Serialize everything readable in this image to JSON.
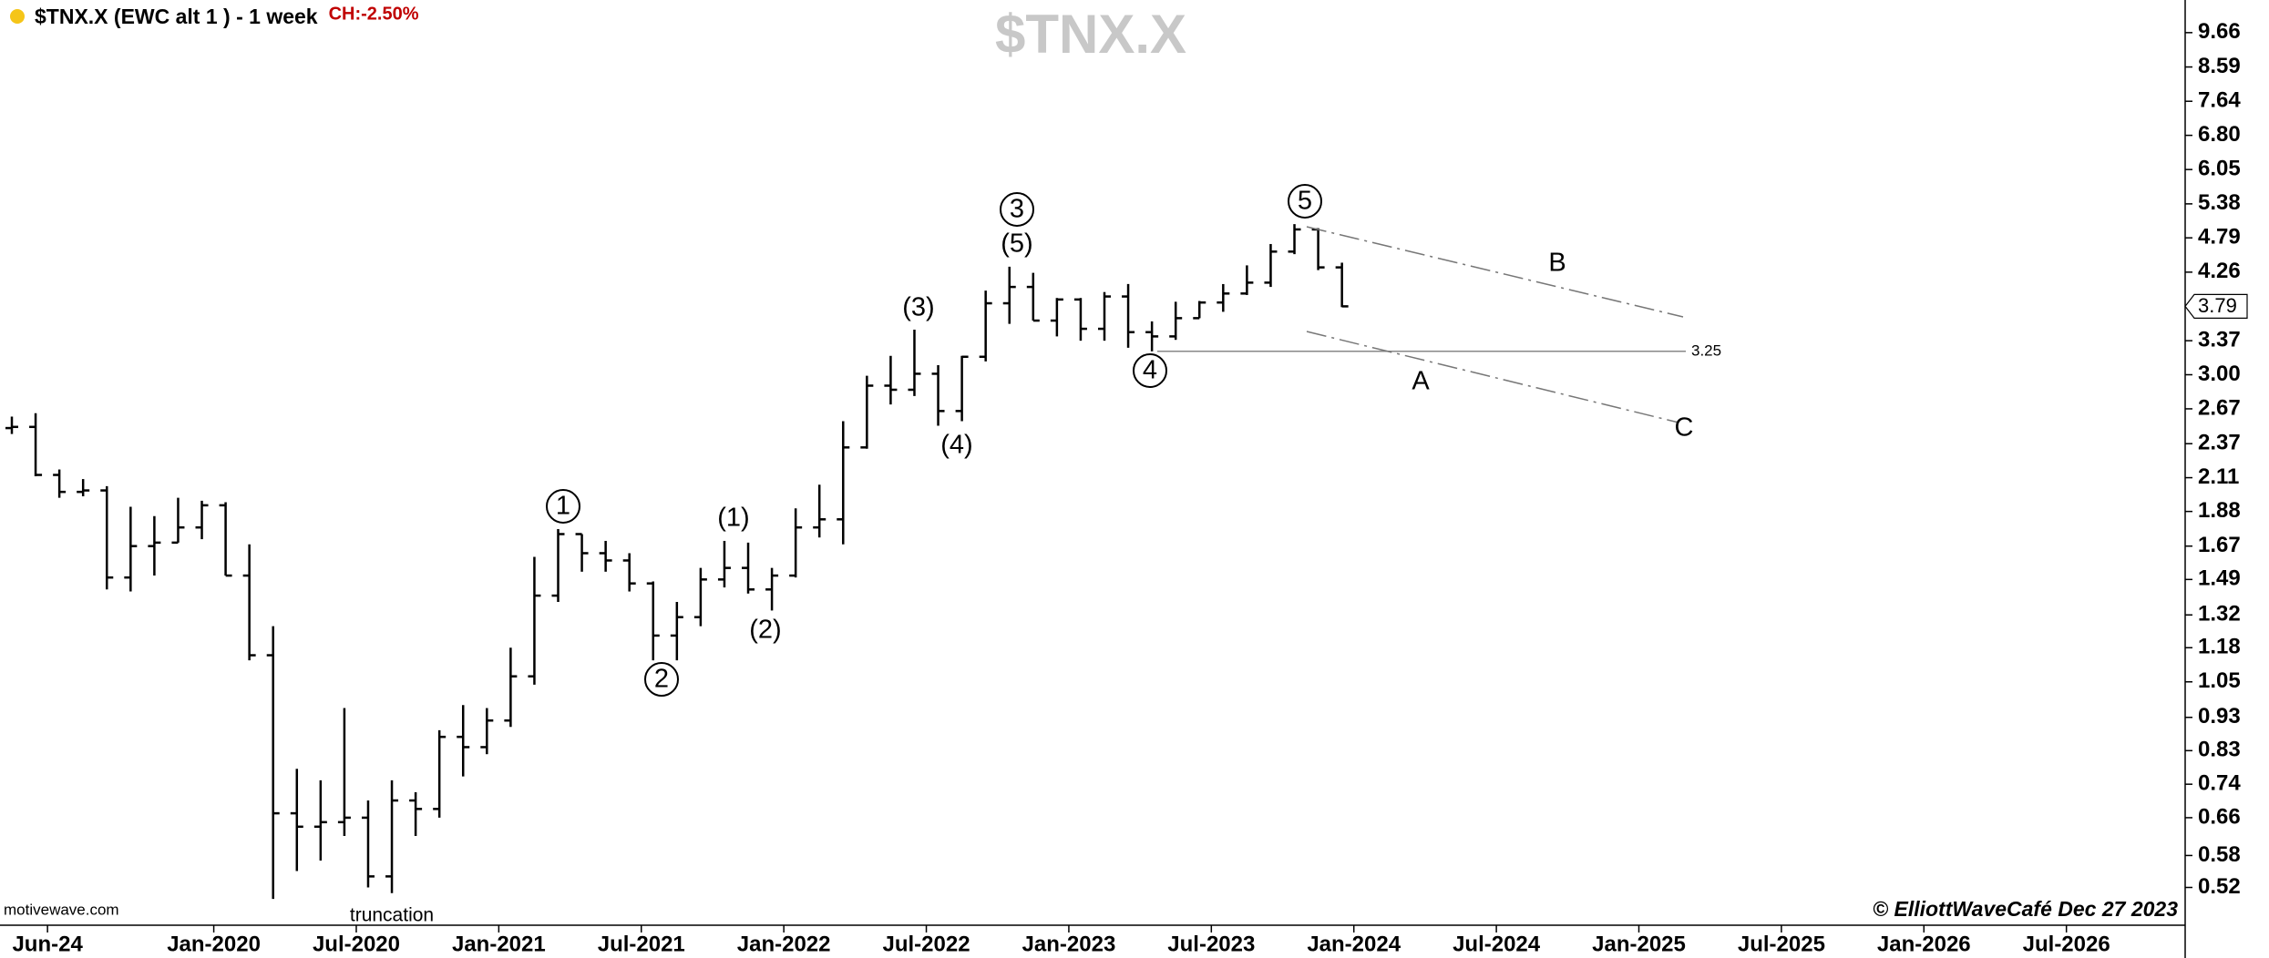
{
  "chart_data": {
    "type": "ohlc",
    "title": "$TNX.X",
    "header": "$TNX.X (EWC alt 1 ) - 1 week",
    "change": "CH:-2.50%",
    "source": "motivewave.com",
    "copyright": "© ElliottWaveCafé Dec 27 2023",
    "log_scale": true,
    "grid": false,
    "color": "#000000",
    "x": [
      "2019-04",
      "2019-05",
      "2019-06",
      "2019-07",
      "2019-08",
      "2019-09",
      "2019-10",
      "2019-11",
      "2019-12",
      "2020-01",
      "2020-02",
      "2020-03",
      "2020-04",
      "2020-05",
      "2020-06",
      "2020-07",
      "2020-08",
      "2020-09",
      "2020-10",
      "2020-11",
      "2020-12",
      "2021-01",
      "2021-02",
      "2021-03",
      "2021-04",
      "2021-05",
      "2021-06",
      "2021-07",
      "2021-08",
      "2021-09",
      "2021-10",
      "2021-11",
      "2021-12",
      "2022-01",
      "2022-02",
      "2022-03",
      "2022-04",
      "2022-05",
      "2022-06",
      "2022-07",
      "2022-08",
      "2022-09",
      "2022-10",
      "2022-11",
      "2022-12",
      "2023-01",
      "2023-02",
      "2023-03",
      "2023-04",
      "2023-05",
      "2023-06",
      "2023-07",
      "2023-08",
      "2023-09",
      "2023-10",
      "2023-11",
      "2023-12"
    ],
    "open": [
      2.5,
      2.51,
      2.13,
      2.01,
      2.02,
      1.5,
      1.67,
      1.69,
      1.78,
      1.92,
      1.51,
      1.15,
      0.67,
      0.64,
      0.65,
      0.66,
      0.54,
      0.7,
      0.68,
      0.87,
      0.84,
      0.92,
      1.07,
      1.41,
      1.74,
      1.63,
      1.59,
      1.47,
      1.23,
      1.31,
      1.49,
      1.55,
      1.44,
      1.51,
      1.78,
      1.83,
      2.34,
      2.89,
      2.85,
      3.01,
      2.65,
      3.19,
      3.83,
      4.05,
      3.61,
      3.88,
      3.51,
      3.92,
      3.47,
      3.42,
      3.64,
      3.84,
      3.96,
      4.11,
      4.57,
      4.93,
      4.33
    ],
    "high": [
      2.6,
      2.63,
      2.17,
      2.1,
      2.05,
      1.91,
      1.85,
      1.97,
      1.95,
      1.94,
      1.68,
      1.27,
      0.78,
      0.75,
      0.96,
      0.7,
      0.75,
      0.72,
      0.89,
      0.97,
      0.96,
      1.18,
      1.61,
      1.77,
      1.74,
      1.7,
      1.63,
      1.48,
      1.38,
      1.55,
      1.7,
      1.69,
      1.55,
      1.9,
      2.06,
      2.56,
      2.99,
      3.2,
      3.5,
      3.1,
      3.2,
      4.0,
      4.34,
      4.25,
      3.9,
      3.9,
      3.98,
      4.09,
      3.6,
      3.85,
      3.86,
      4.09,
      4.36,
      4.69,
      5.02,
      4.95,
      4.4
    ],
    "low": [
      2.45,
      2.12,
      1.97,
      1.98,
      1.44,
      1.43,
      1.51,
      1.69,
      1.71,
      1.51,
      1.13,
      0.5,
      0.55,
      0.57,
      0.62,
      0.52,
      0.51,
      0.62,
      0.66,
      0.76,
      0.82,
      0.9,
      1.04,
      1.38,
      1.53,
      1.53,
      1.43,
      1.13,
      1.13,
      1.27,
      1.45,
      1.42,
      1.34,
      1.5,
      1.72,
      1.68,
      2.33,
      2.71,
      2.79,
      2.52,
      2.56,
      3.14,
      3.57,
      3.61,
      3.42,
      3.37,
      3.37,
      3.29,
      3.25,
      3.38,
      3.64,
      3.72,
      3.94,
      4.05,
      4.53,
      4.29,
      3.78
    ],
    "close": [
      2.51,
      2.13,
      2.01,
      2.02,
      1.5,
      1.67,
      1.69,
      1.78,
      1.92,
      1.51,
      1.15,
      0.67,
      0.64,
      0.65,
      0.66,
      0.54,
      0.7,
      0.68,
      0.87,
      0.84,
      0.92,
      1.07,
      1.41,
      1.74,
      1.63,
      1.59,
      1.47,
      1.23,
      1.31,
      1.49,
      1.55,
      1.44,
      1.51,
      1.78,
      1.83,
      2.34,
      2.89,
      2.85,
      3.01,
      2.65,
      3.19,
      3.83,
      4.05,
      3.61,
      3.88,
      3.51,
      3.92,
      3.47,
      3.42,
      3.64,
      3.84,
      3.96,
      4.11,
      4.57,
      4.93,
      4.33,
      3.79
    ],
    "xlim": [
      "2019-04",
      "2026-12"
    ],
    "xticks": [
      {
        "value": "2019-06",
        "label": "Jun-24"
      },
      {
        "value": "2020-01",
        "label": "Jan-2020"
      },
      {
        "value": "2020-07",
        "label": "Jul-2020"
      },
      {
        "value": "2021-01",
        "label": "Jan-2021"
      },
      {
        "value": "2021-07",
        "label": "Jul-2021"
      },
      {
        "value": "2022-01",
        "label": "Jan-2022"
      },
      {
        "value": "2022-07",
        "label": "Jul-2022"
      },
      {
        "value": "2023-01",
        "label": "Jan-2023"
      },
      {
        "value": "2023-07",
        "label": "Jul-2023"
      },
      {
        "value": "2024-01",
        "label": "Jan-2024"
      },
      {
        "value": "2024-07",
        "label": "Jul-2024"
      },
      {
        "value": "2025-01",
        "label": "Jan-2025"
      },
      {
        "value": "2025-07",
        "label": "Jul-2025"
      },
      {
        "value": "2026-01",
        "label": "Jan-2026"
      },
      {
        "value": "2026-07",
        "label": "Jul-2026"
      }
    ],
    "ylim": [
      0.457,
      10.8
    ],
    "yticks": [
      9.66,
      8.59,
      7.64,
      {
        "value": 6.8,
        "label": "6.80"
      },
      6.05,
      5.38,
      4.79,
      4.26,
      3.37,
      {
        "value": 3,
        "label": "3.00"
      },
      2.67,
      2.37,
      2.11,
      1.88,
      1.67,
      1.49,
      1.32,
      1.18,
      1.05,
      0.93,
      0.83,
      0.74,
      0.66,
      0.58,
      0.52
    ],
    "last_price": 3.79,
    "level": 3.25,
    "annotations": [
      {
        "text": "1",
        "circled": true
      },
      {
        "text": "2",
        "circled": true
      },
      {
        "text": "(1)",
        "circled": false
      },
      {
        "text": "(2)",
        "circled": false
      },
      {
        "text": "(3)",
        "circled": false
      },
      {
        "text": "(4)",
        "circled": false
      },
      {
        "text": "3",
        "circled": true
      },
      {
        "text": "(5)",
        "circled": false
      },
      {
        "text": "4",
        "circled": true
      },
      {
        "text": "5",
        "circled": true
      },
      {
        "text": "A",
        "circled": false
      },
      {
        "text": "B",
        "circled": false
      },
      {
        "text": "C",
        "circled": false
      },
      {
        "text": "truncation",
        "circled": false
      }
    ]
  }
}
